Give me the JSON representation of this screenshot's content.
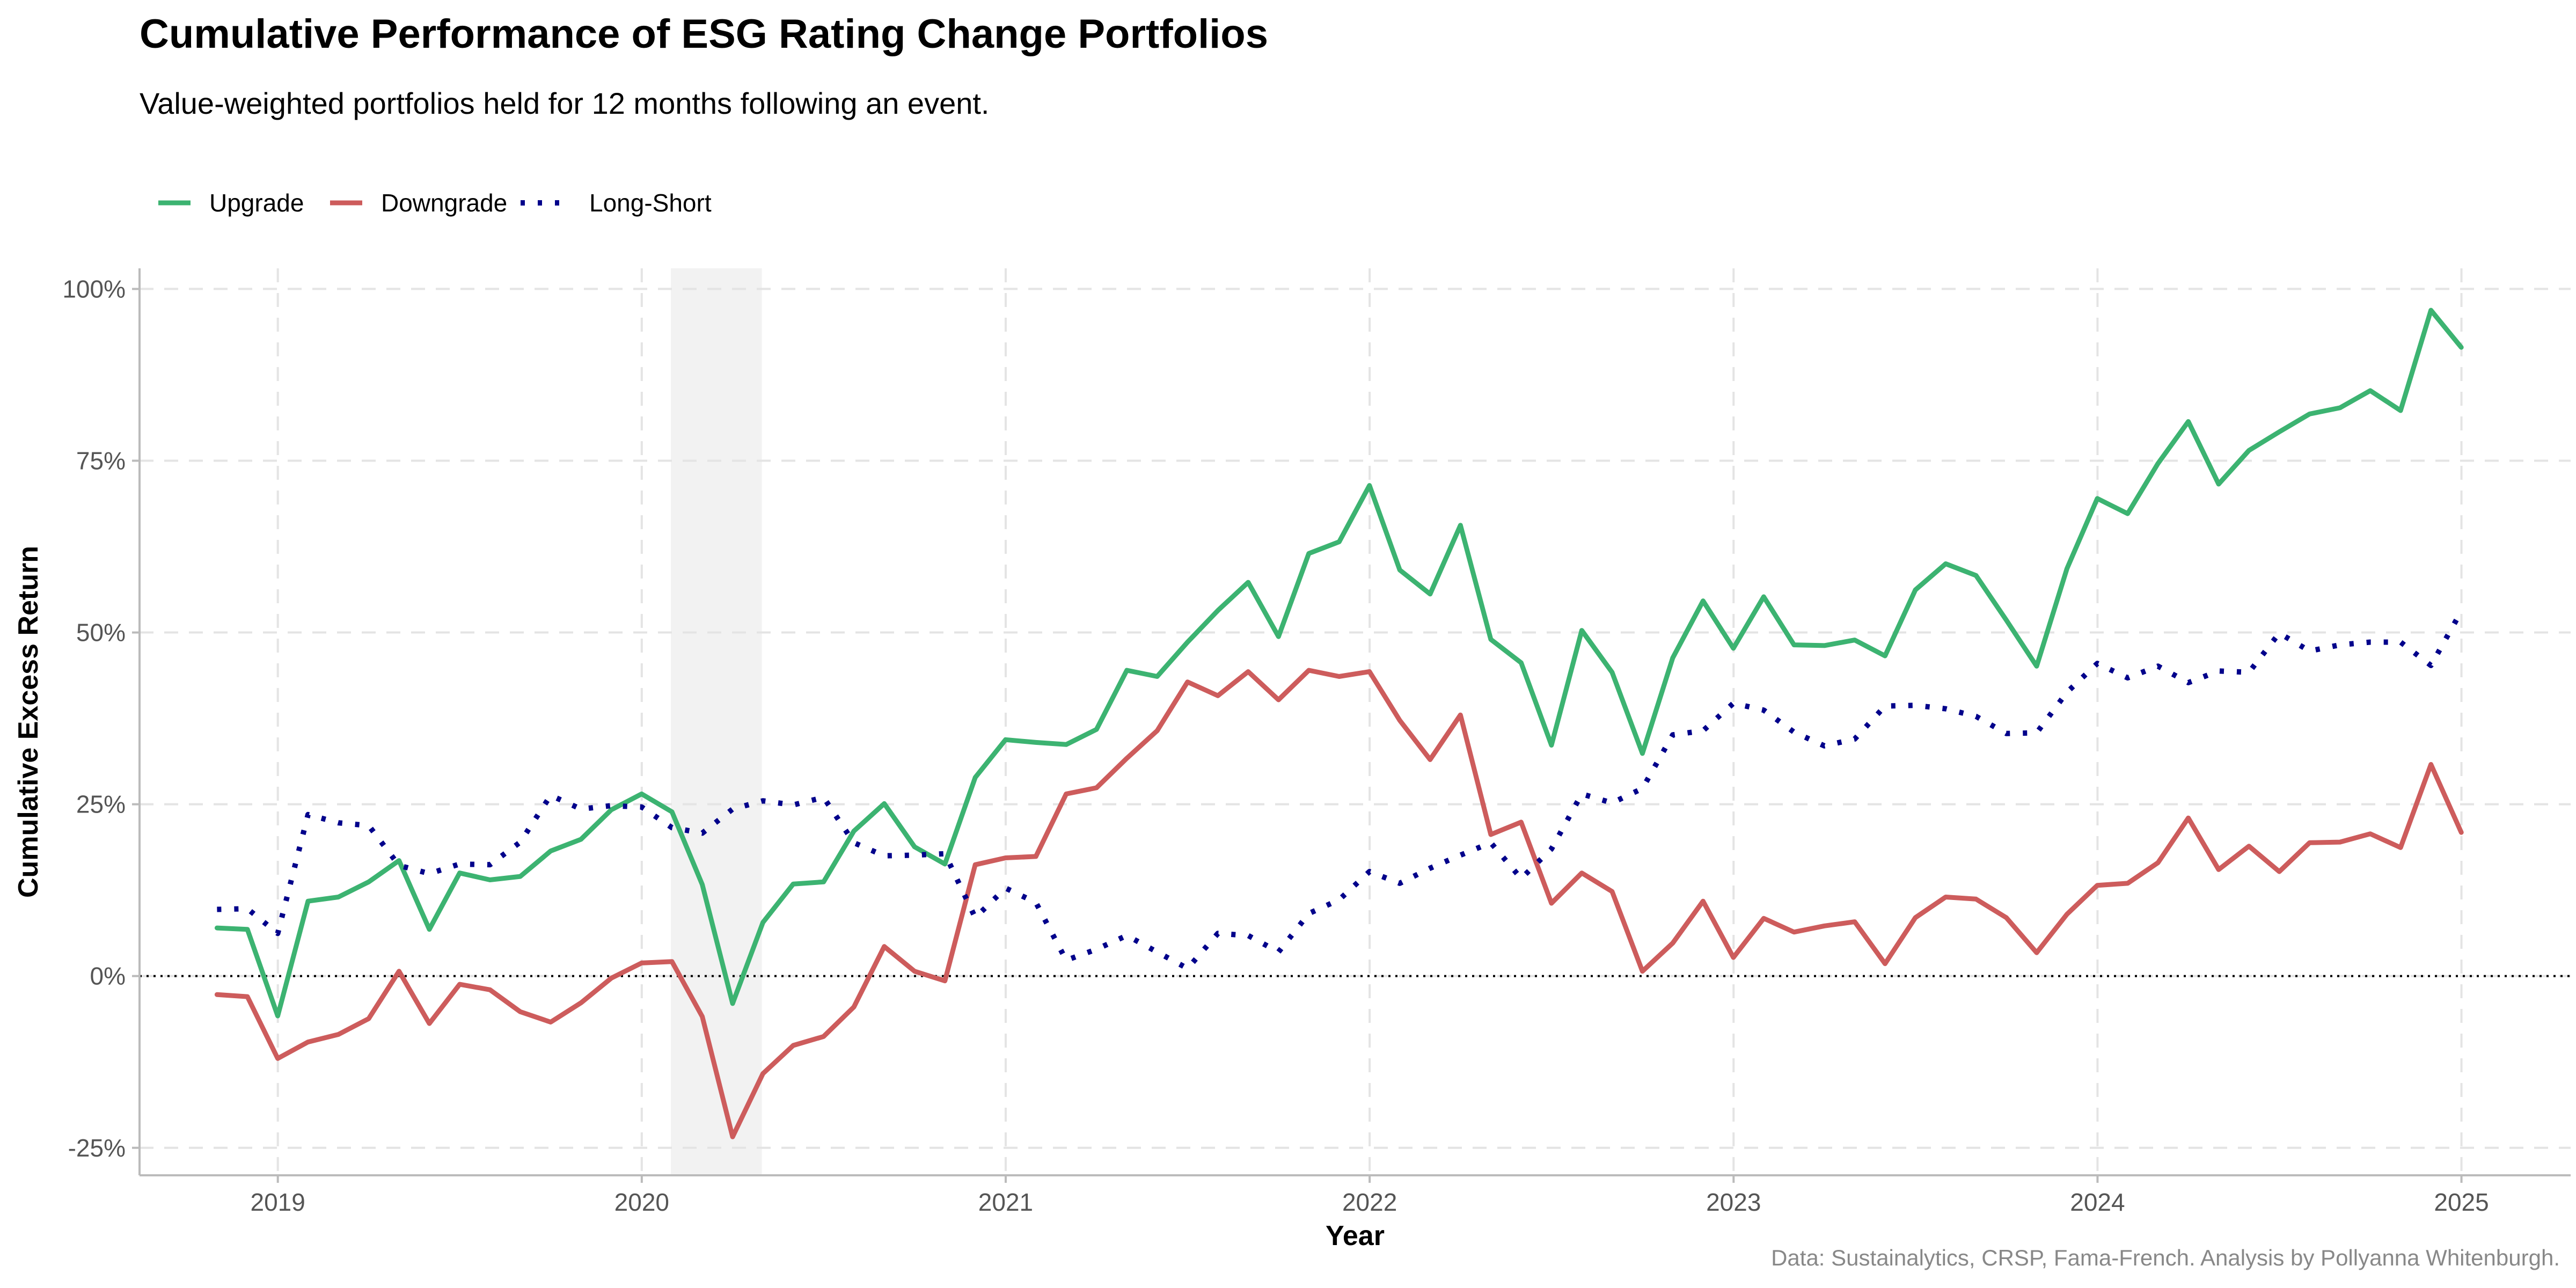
{
  "header": {
    "title": "Cumulative Performance of ESG Rating Change Portfolios",
    "subtitle": "Value-weighted portfolios held for 12 months following an event."
  },
  "caption": "Data: Sustainalytics, CRSP, Fama-French. Analysis by Pollyanna Whitenburgh.",
  "colors": {
    "upgrade": "#3cb371",
    "downgrade": "#cd5c5c",
    "longshort": "#00008b",
    "grid": "#e4e4e4",
    "shade": "#f2f2f2",
    "axis": "#bbbbbb"
  },
  "chart_data": {
    "type": "line",
    "xlabel": "Year",
    "ylabel": "Cumulative Excess Return",
    "xlim": [
      2018.62,
      2025.3
    ],
    "ylim": [
      -0.29,
      1.03
    ],
    "x_ticks": [
      2019,
      2020,
      2021,
      2022,
      2023,
      2024,
      2025
    ],
    "x_tick_labels": [
      "2019",
      "2020",
      "2021",
      "2022",
      "2023",
      "2024",
      "2025"
    ],
    "y_ticks": [
      -0.25,
      0,
      0.25,
      0.5,
      0.75,
      1.0
    ],
    "y_tick_labels": [
      "-25%",
      "0%",
      "25%",
      "50%",
      "75%",
      "100%"
    ],
    "grid": true,
    "legend_position": "top-left",
    "zero_reference_line": true,
    "shaded_period": [
      2020.08,
      2020.33
    ],
    "x_start": 2018.833,
    "x_step": 0.08333,
    "series": [
      {
        "name": "Upgrade",
        "style": "solid",
        "values": [
          0.07,
          0.068,
          -0.058,
          0.109,
          0.115,
          0.137,
          0.168,
          0.068,
          0.15,
          0.14,
          0.145,
          0.182,
          0.199,
          0.242,
          0.265,
          0.239,
          0.133,
          -0.04,
          0.078,
          0.134,
          0.137,
          0.211,
          0.251,
          0.188,
          0.163,
          0.289,
          0.344,
          0.34,
          0.337,
          0.359,
          0.445,
          0.436,
          0.486,
          0.532,
          0.573,
          0.494,
          0.615,
          0.632,
          0.714,
          0.591,
          0.556,
          0.656,
          0.49,
          0.456,
          0.336,
          0.503,
          0.442,
          0.324,
          0.463,
          0.546,
          0.477,
          0.552,
          0.482,
          0.481,
          0.489,
          0.466,
          0.562,
          0.6,
          0.583,
          0.518,
          0.451,
          0.593,
          0.695,
          0.673,
          0.746,
          0.807,
          0.716,
          0.765,
          0.792,
          0.818,
          0.827,
          0.852,
          0.823,
          0.969,
          0.915
        ]
      },
      {
        "name": "Downgrade",
        "style": "solid",
        "values": [
          -0.027,
          -0.03,
          -0.12,
          -0.096,
          -0.085,
          -0.062,
          0.007,
          -0.069,
          -0.012,
          -0.02,
          -0.052,
          -0.067,
          -0.039,
          -0.003,
          0.019,
          0.021,
          -0.059,
          -0.234,
          -0.142,
          -0.101,
          -0.088,
          -0.045,
          0.043,
          0.007,
          -0.007,
          0.162,
          0.172,
          0.174,
          0.265,
          0.274,
          0.317,
          0.357,
          0.428,
          0.408,
          0.443,
          0.402,
          0.445,
          0.436,
          0.443,
          0.372,
          0.315,
          0.38,
          0.206,
          0.224,
          0.106,
          0.15,
          0.123,
          0.007,
          0.048,
          0.109,
          0.027,
          0.084,
          0.064,
          0.073,
          0.079,
          0.018,
          0.085,
          0.115,
          0.112,
          0.085,
          0.034,
          0.09,
          0.132,
          0.135,
          0.165,
          0.23,
          0.155,
          0.189,
          0.152,
          0.194,
          0.195,
          0.207,
          0.187,
          0.308,
          0.209
        ]
      },
      {
        "name": "Long-Short",
        "style": "dotted",
        "values": [
          0.097,
          0.098,
          0.062,
          0.235,
          0.223,
          0.219,
          0.161,
          0.149,
          0.163,
          0.162,
          0.195,
          0.263,
          0.243,
          0.248,
          0.246,
          0.216,
          0.208,
          0.243,
          0.255,
          0.249,
          0.26,
          0.194,
          0.175,
          0.176,
          0.178,
          0.085,
          0.128,
          0.107,
          0.023,
          0.039,
          0.059,
          0.035,
          0.011,
          0.062,
          0.059,
          0.035,
          0.091,
          0.111,
          0.152,
          0.135,
          0.157,
          0.176,
          0.194,
          0.142,
          0.185,
          0.265,
          0.252,
          0.273,
          0.351,
          0.357,
          0.397,
          0.387,
          0.355,
          0.335,
          0.345,
          0.393,
          0.394,
          0.389,
          0.378,
          0.353,
          0.354,
          0.413,
          0.455,
          0.434,
          0.451,
          0.427,
          0.444,
          0.442,
          0.499,
          0.473,
          0.482,
          0.486,
          0.486,
          0.452,
          0.531
        ]
      }
    ]
  }
}
